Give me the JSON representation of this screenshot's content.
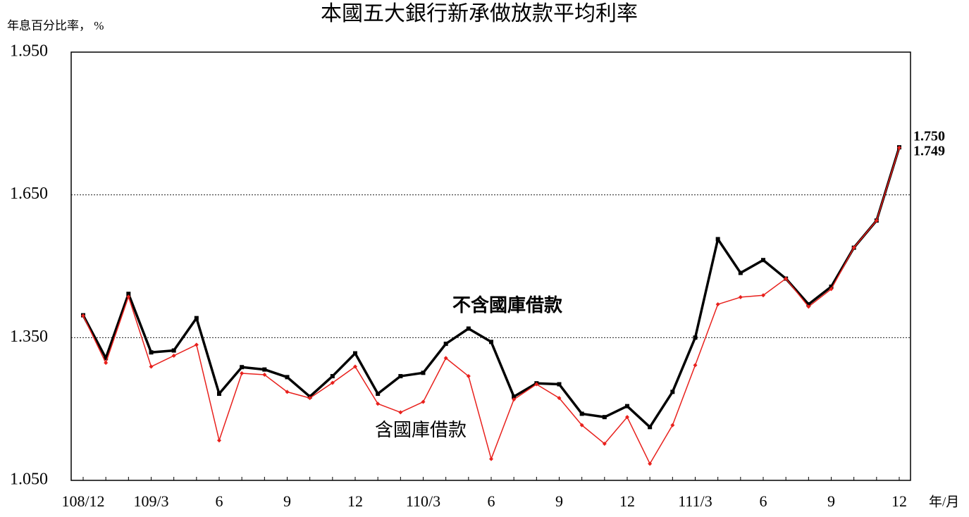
{
  "chart_data": {
    "type": "line",
    "title": "本國五大銀行新承做放款平均利率",
    "y_label": "年息百分比率， %",
    "x_label": "年/月",
    "categories": [
      "108/12",
      null,
      null,
      "109/3",
      null,
      null,
      "6",
      null,
      null,
      "9",
      null,
      null,
      "12",
      null,
      null,
      "110/3",
      null,
      null,
      "6",
      null,
      null,
      "9",
      null,
      null,
      "12",
      null,
      null,
      "111/3",
      null,
      null,
      "6",
      null,
      null,
      "9",
      null,
      null,
      "12"
    ],
    "series": [
      {
        "name": "不含國庫借款",
        "color": "#000000",
        "values": [
          1.397,
          1.307,
          1.442,
          1.319,
          1.323,
          1.391,
          1.232,
          1.288,
          1.283,
          1.267,
          1.226,
          1.269,
          1.317,
          1.232,
          1.269,
          1.276,
          1.337,
          1.369,
          1.341,
          1.226,
          1.254,
          1.252,
          1.19,
          1.183,
          1.206,
          1.162,
          1.236,
          1.35,
          1.557,
          1.486,
          1.513,
          1.474,
          1.42,
          1.457,
          1.539,
          1.596,
          1.75
        ],
        "value_labels": [
          null,
          null,
          null,
          null,
          null,
          null,
          null,
          null,
          null,
          null,
          null,
          null,
          null,
          null,
          null,
          null,
          null,
          null,
          null,
          null,
          null,
          null,
          null,
          null,
          null,
          null,
          null,
          null,
          null,
          null,
          null,
          null,
          null,
          null,
          null,
          null,
          "1.750"
        ]
      },
      {
        "name": "含國庫借款",
        "color": "#e8201c",
        "values": [
          1.396,
          1.297,
          1.436,
          1.289,
          1.312,
          1.335,
          1.134,
          1.275,
          1.272,
          1.236,
          1.223,
          1.255,
          1.289,
          1.211,
          1.193,
          1.215,
          1.307,
          1.269,
          1.095,
          1.22,
          1.252,
          1.223,
          1.166,
          1.127,
          1.183,
          1.085,
          1.166,
          1.292,
          1.42,
          1.435,
          1.439,
          1.474,
          1.415,
          1.452,
          1.539,
          1.596,
          1.749
        ],
        "value_labels": [
          null,
          null,
          null,
          null,
          null,
          null,
          null,
          null,
          null,
          null,
          null,
          null,
          null,
          null,
          null,
          null,
          null,
          null,
          null,
          null,
          null,
          null,
          null,
          null,
          null,
          null,
          null,
          null,
          null,
          null,
          null,
          null,
          null,
          null,
          null,
          null,
          "1.749"
        ]
      }
    ],
    "ylim": [
      1.05,
      1.95
    ],
    "yticks": [
      {
        "value": 1.05,
        "label": "1.050"
      },
      {
        "value": 1.35,
        "label": "1.350"
      },
      {
        "value": 1.65,
        "label": "1.650"
      },
      {
        "value": 1.95,
        "label": "1.950"
      }
    ],
    "grid": true
  }
}
